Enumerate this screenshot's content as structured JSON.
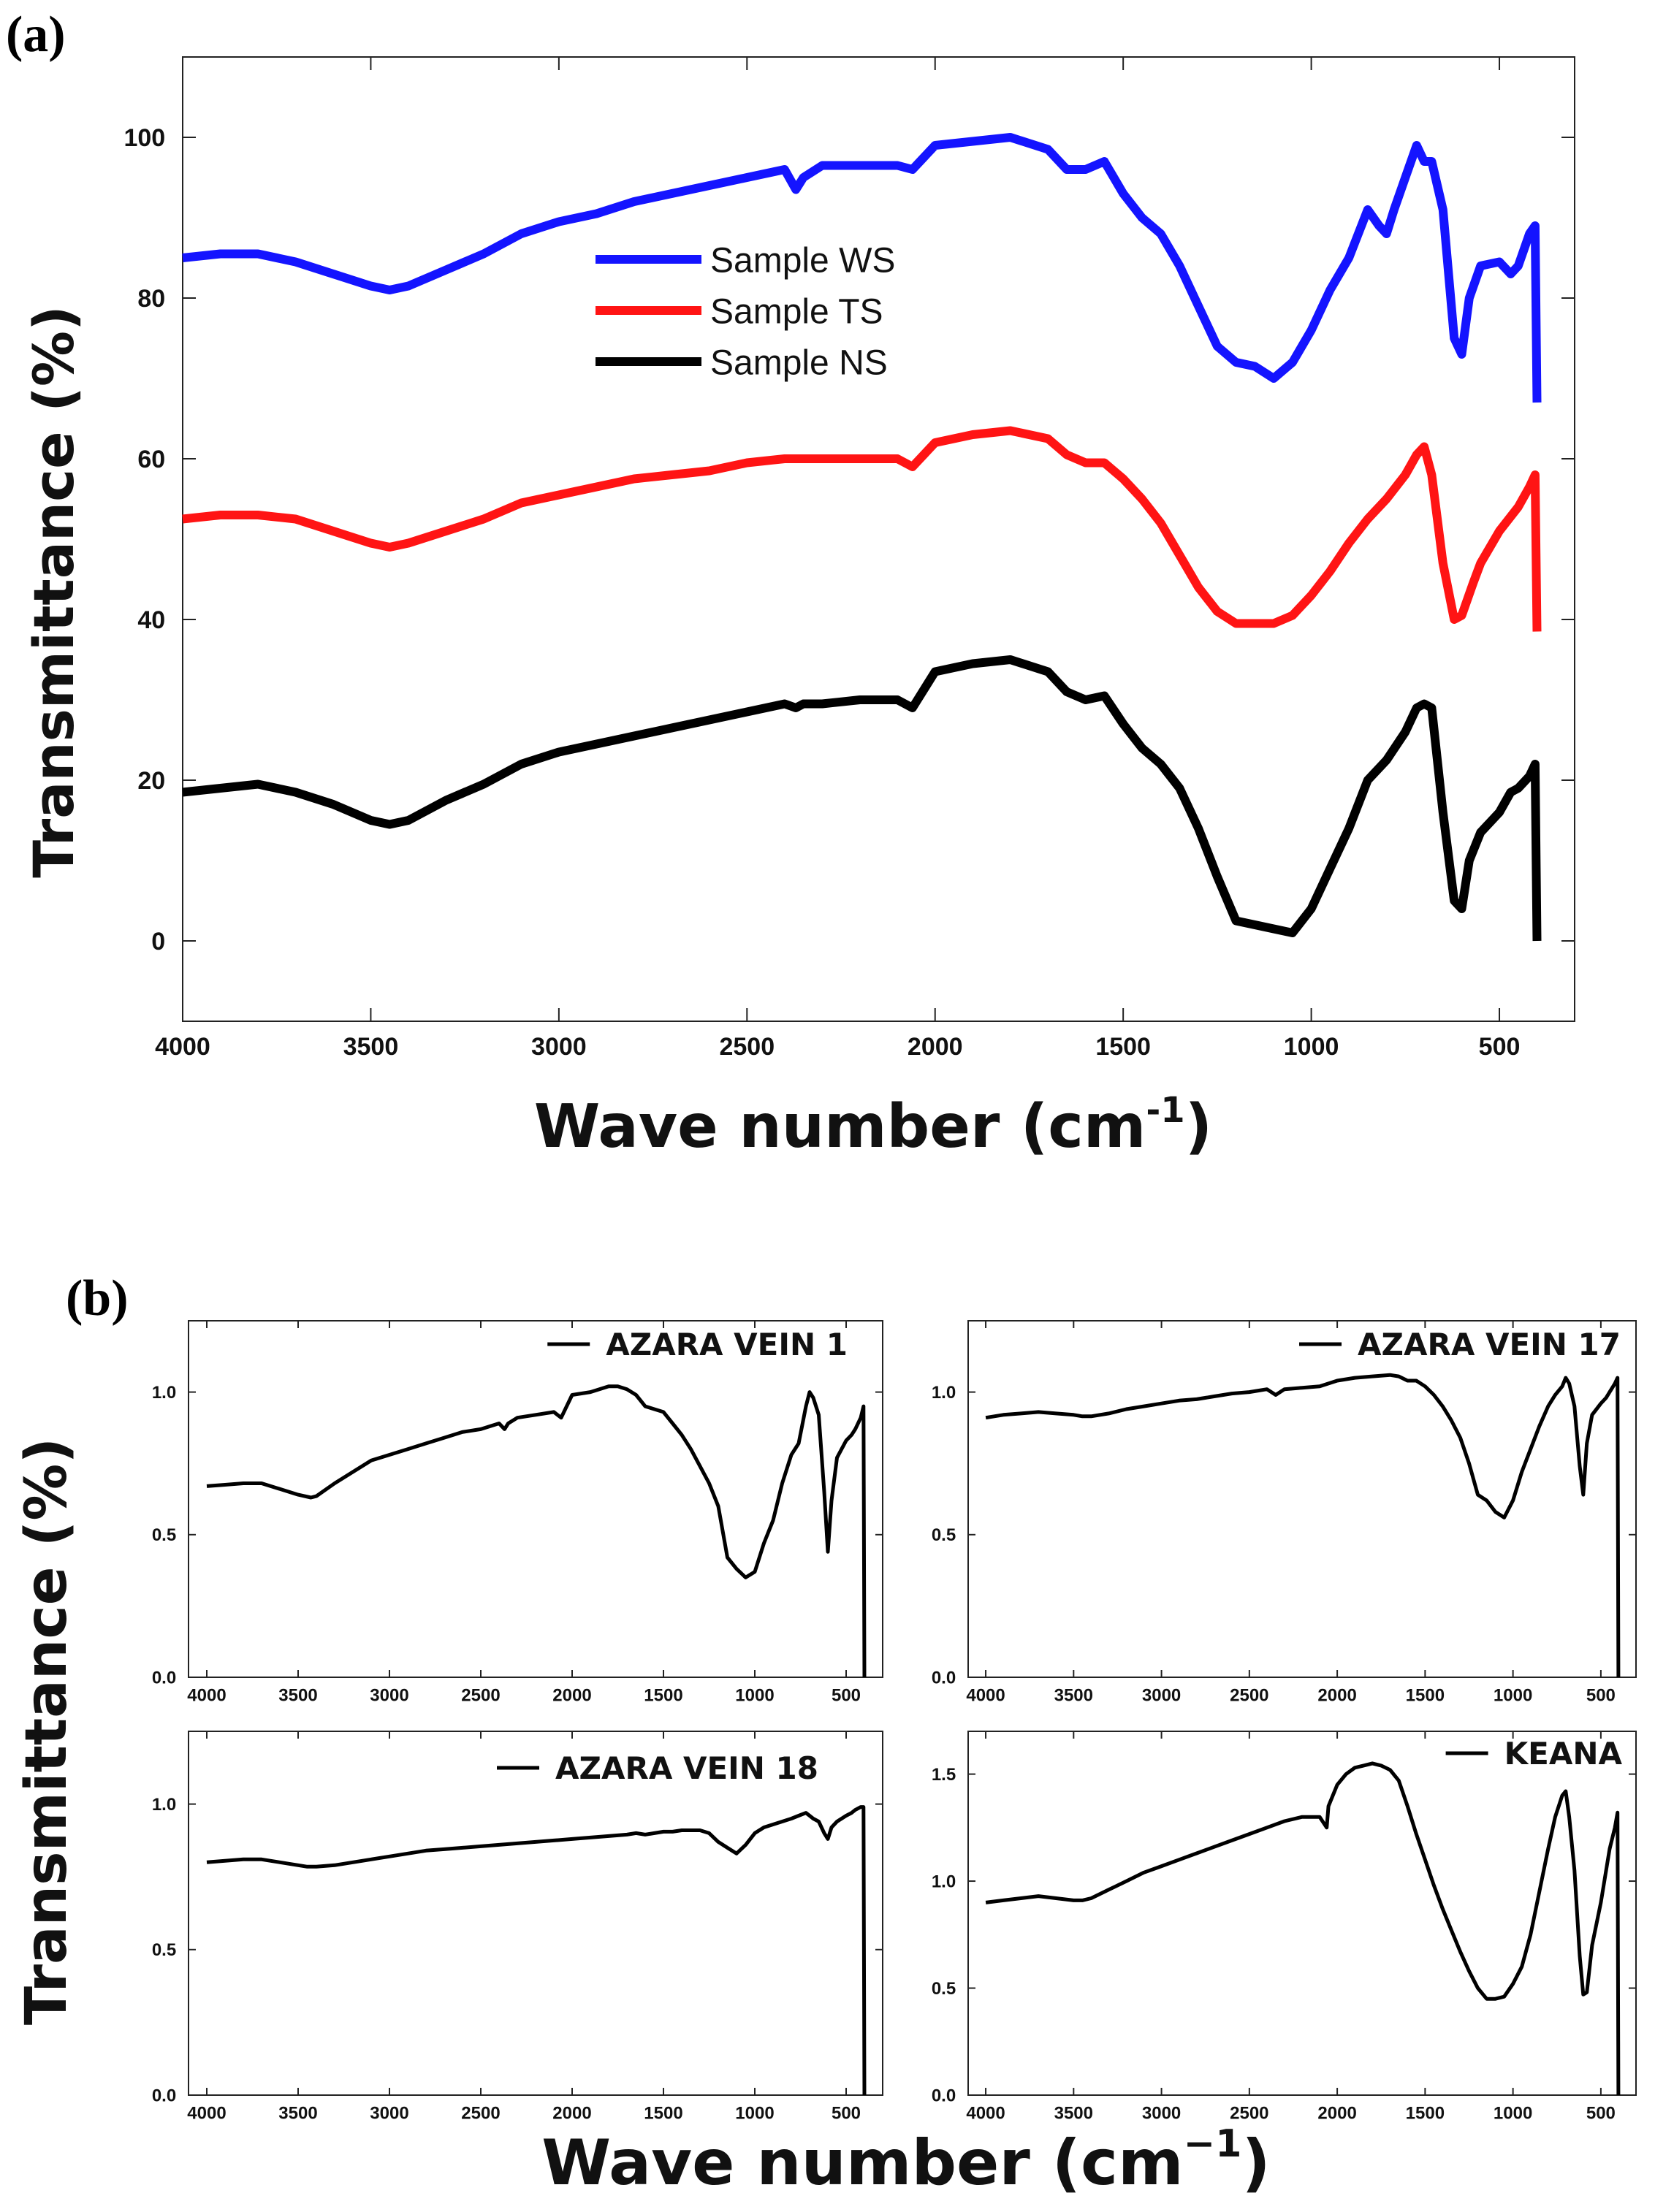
{
  "panel_a": {
    "tag": "(a)",
    "xlabel": "Wave number (cm",
    "xlabel_sup": "-1",
    "ylabel": "Transmittance (%)"
  },
  "panel_b": {
    "tag": "(b)",
    "xlabel": "Wave number (cm",
    "xlabel_sup": "−1",
    "ylabel": "Transmittance (%)"
  },
  "chart_data": [
    {
      "id": "a",
      "type": "line",
      "title": "",
      "xlabel": "Wave number (cm-1)",
      "ylabel": "Transmittance (%)",
      "xlim": [
        4000,
        300
      ],
      "ylim": [
        -10,
        110
      ],
      "x_reversed": true,
      "xticks": [
        4000,
        3500,
        3000,
        2500,
        2000,
        1500,
        1000,
        500
      ],
      "yticks": [
        0,
        20,
        40,
        60,
        80,
        100
      ],
      "legend_position": "center",
      "series": [
        {
          "name": "Sample WS",
          "color": "#1414ff",
          "x": [
            4000,
            3900,
            3800,
            3700,
            3600,
            3500,
            3450,
            3400,
            3300,
            3200,
            3100,
            3000,
            2900,
            2800,
            2700,
            2600,
            2500,
            2400,
            2370,
            2350,
            2300,
            2200,
            2100,
            2060,
            2000,
            1900,
            1800,
            1700,
            1650,
            1600,
            1550,
            1500,
            1450,
            1400,
            1350,
            1300,
            1250,
            1200,
            1150,
            1100,
            1050,
            1000,
            950,
            900,
            850,
            820,
            800,
            780,
            750,
            720,
            700,
            680,
            650,
            620,
            600,
            580,
            550,
            500,
            470,
            450,
            420,
            405,
            400
          ],
          "y": [
            85,
            85.5,
            85.5,
            84.5,
            83,
            81.5,
            81,
            81.5,
            83.5,
            85.5,
            88,
            89.5,
            90.5,
            92,
            93,
            94,
            95,
            96,
            93.5,
            95,
            96.5,
            96.5,
            96.5,
            96,
            99,
            99.5,
            100,
            98.5,
            96,
            96,
            97,
            93,
            90,
            88,
            84,
            79,
            74,
            72,
            71.5,
            70,
            72,
            76,
            81,
            85,
            91,
            89,
            88,
            91,
            95,
            99,
            97,
            97,
            91,
            75,
            73,
            80,
            84,
            84.5,
            83,
            84,
            88,
            89,
            67
          ]
        },
        {
          "name": "Sample TS",
          "color": "#ff1414",
          "x": [
            4000,
            3900,
            3800,
            3700,
            3600,
            3500,
            3450,
            3400,
            3300,
            3200,
            3100,
            3000,
            2900,
            2800,
            2700,
            2600,
            2500,
            2400,
            2300,
            2200,
            2100,
            2060,
            2000,
            1900,
            1800,
            1700,
            1650,
            1600,
            1550,
            1500,
            1450,
            1400,
            1350,
            1300,
            1250,
            1200,
            1150,
            1100,
            1050,
            1000,
            950,
            900,
            850,
            800,
            750,
            720,
            700,
            680,
            650,
            620,
            600,
            570,
            550,
            500,
            450,
            420,
            405,
            400
          ],
          "y": [
            52.5,
            53,
            53,
            52.5,
            51,
            49.5,
            49,
            49.5,
            51,
            52.5,
            54.5,
            55.5,
            56.5,
            57.5,
            58,
            58.5,
            59.5,
            60,
            60,
            60,
            60,
            59,
            62,
            63,
            63.5,
            62.5,
            60.5,
            59.5,
            59.5,
            57.5,
            55,
            52,
            48,
            44,
            41,
            39.5,
            39.5,
            39.5,
            40.5,
            43,
            46,
            49.5,
            52.5,
            55,
            58,
            60.5,
            61.5,
            58,
            47,
            40,
            40.5,
            44.5,
            47,
            51,
            54,
            56.5,
            58,
            38.5
          ]
        },
        {
          "name": "Sample NS",
          "color": "#000000",
          "x": [
            4000,
            3900,
            3800,
            3700,
            3600,
            3500,
            3450,
            3400,
            3300,
            3200,
            3100,
            3000,
            2900,
            2800,
            2700,
            2600,
            2500,
            2400,
            2370,
            2350,
            2300,
            2200,
            2100,
            2060,
            2000,
            1900,
            1800,
            1700,
            1650,
            1600,
            1550,
            1500,
            1450,
            1400,
            1350,
            1300,
            1250,
            1200,
            1150,
            1100,
            1050,
            1000,
            950,
            900,
            850,
            800,
            750,
            720,
            700,
            680,
            650,
            620,
            600,
            580,
            550,
            500,
            470,
            450,
            420,
            405,
            400
          ],
          "y": [
            18.5,
            19,
            19.5,
            18.5,
            17,
            15,
            14.5,
            15,
            17.5,
            19.5,
            22,
            23.5,
            24.5,
            25.5,
            26.5,
            27.5,
            28.5,
            29.5,
            29,
            29.5,
            29.5,
            30,
            30,
            29,
            33.5,
            34.5,
            35,
            33.5,
            31,
            30,
            30.5,
            27,
            24,
            22,
            19,
            14,
            8,
            2.5,
            2,
            1.5,
            1,
            4,
            9,
            14,
            20,
            22.5,
            26,
            29,
            29.5,
            29,
            16,
            5,
            4,
            10,
            13.5,
            16,
            18.5,
            19,
            20.5,
            22,
            0
          ]
        }
      ]
    },
    {
      "id": "b1",
      "type": "line",
      "title": "",
      "xlim": [
        4100,
        300
      ],
      "ylim": [
        0,
        1.25
      ],
      "x_reversed": true,
      "xticks": [
        4000,
        3500,
        3000,
        2500,
        2000,
        1500,
        1000,
        500
      ],
      "yticks": [
        0.0,
        0.5,
        1.0
      ],
      "legend_position": "top-right",
      "series": [
        {
          "name": "AZARA VEIN 1",
          "color": "#000000",
          "x": [
            4000,
            3900,
            3800,
            3700,
            3600,
            3500,
            3430,
            3400,
            3300,
            3200,
            3100,
            3000,
            2900,
            2800,
            2700,
            2600,
            2500,
            2400,
            2370,
            2350,
            2300,
            2200,
            2100,
            2060,
            2000,
            1900,
            1800,
            1750,
            1700,
            1650,
            1600,
            1550,
            1500,
            1450,
            1400,
            1350,
            1300,
            1250,
            1200,
            1150,
            1100,
            1050,
            1000,
            950,
            900,
            850,
            800,
            760,
            720,
            700,
            680,
            650,
            620,
            600,
            580,
            550,
            500,
            470,
            450,
            420,
            405,
            400
          ],
          "y": [
            0.67,
            0.675,
            0.68,
            0.68,
            0.66,
            0.64,
            0.63,
            0.635,
            0.68,
            0.72,
            0.76,
            0.78,
            0.8,
            0.82,
            0.84,
            0.86,
            0.87,
            0.89,
            0.87,
            0.89,
            0.91,
            0.92,
            0.93,
            0.91,
            0.99,
            1.0,
            1.02,
            1.02,
            1.01,
            0.99,
            0.95,
            0.94,
            0.93,
            0.89,
            0.85,
            0.8,
            0.74,
            0.68,
            0.6,
            0.42,
            0.38,
            0.35,
            0.37,
            0.47,
            0.55,
            0.68,
            0.78,
            0.82,
            0.95,
            1.0,
            0.98,
            0.92,
            0.65,
            0.44,
            0.62,
            0.77,
            0.83,
            0.85,
            0.87,
            0.91,
            0.95,
            0.0
          ]
        }
      ]
    },
    {
      "id": "b2",
      "type": "line",
      "title": "",
      "xlim": [
        4100,
        300
      ],
      "ylim": [
        0,
        1.25
      ],
      "x_reversed": true,
      "xticks": [
        4000,
        3500,
        3000,
        2500,
        2000,
        1500,
        1000,
        500
      ],
      "yticks": [
        0.0,
        0.5,
        1.0
      ],
      "legend_position": "top-right",
      "series": [
        {
          "name": "AZARA VEIN 17",
          "color": "#000000",
          "x": [
            4000,
            3900,
            3800,
            3700,
            3600,
            3500,
            3450,
            3400,
            3300,
            3200,
            3100,
            3000,
            2900,
            2800,
            2700,
            2600,
            2500,
            2400,
            2350,
            2300,
            2200,
            2100,
            2000,
            1900,
            1800,
            1700,
            1650,
            1600,
            1550,
            1500,
            1450,
            1400,
            1350,
            1300,
            1250,
            1200,
            1150,
            1100,
            1050,
            1000,
            950,
            900,
            850,
            800,
            760,
            720,
            700,
            680,
            650,
            620,
            600,
            580,
            550,
            500,
            470,
            450,
            420,
            405,
            400
          ],
          "y": [
            0.91,
            0.92,
            0.925,
            0.93,
            0.925,
            0.92,
            0.915,
            0.915,
            0.925,
            0.94,
            0.95,
            0.96,
            0.97,
            0.975,
            0.985,
            0.995,
            1.0,
            1.01,
            0.99,
            1.01,
            1.015,
            1.02,
            1.04,
            1.05,
            1.055,
            1.06,
            1.055,
            1.04,
            1.04,
            1.02,
            0.99,
            0.95,
            0.9,
            0.84,
            0.75,
            0.64,
            0.62,
            0.58,
            0.56,
            0.62,
            0.72,
            0.8,
            0.88,
            0.95,
            0.99,
            1.02,
            1.05,
            1.03,
            0.95,
            0.74,
            0.64,
            0.82,
            0.92,
            0.96,
            0.98,
            1.0,
            1.03,
            1.05,
            0.0
          ]
        }
      ]
    },
    {
      "id": "b3",
      "type": "line",
      "title": "",
      "xlim": [
        4100,
        300
      ],
      "ylim": [
        0,
        1.25
      ],
      "x_reversed": true,
      "xticks": [
        4000,
        3500,
        3000,
        2500,
        2000,
        1500,
        1000,
        500
      ],
      "yticks": [
        0.0,
        0.5,
        1.0
      ],
      "legend_position": "top-right",
      "series": [
        {
          "name": "AZARA VEIN 18",
          "color": "#000000",
          "x": [
            4000,
            3900,
            3800,
            3700,
            3600,
            3500,
            3450,
            3400,
            3300,
            3200,
            3100,
            3000,
            2900,
            2800,
            2700,
            2600,
            2500,
            2400,
            2300,
            2200,
            2100,
            2000,
            1900,
            1800,
            1700,
            1650,
            1600,
            1550,
            1500,
            1450,
            1400,
            1350,
            1300,
            1250,
            1200,
            1150,
            1100,
            1050,
            1000,
            950,
            900,
            850,
            800,
            760,
            720,
            700,
            680,
            650,
            620,
            600,
            580,
            550,
            500,
            470,
            450,
            420,
            405,
            400
          ],
          "y": [
            0.8,
            0.805,
            0.81,
            0.81,
            0.8,
            0.79,
            0.785,
            0.785,
            0.79,
            0.8,
            0.81,
            0.82,
            0.83,
            0.84,
            0.845,
            0.85,
            0.855,
            0.86,
            0.865,
            0.87,
            0.875,
            0.88,
            0.885,
            0.89,
            0.895,
            0.9,
            0.895,
            0.9,
            0.905,
            0.905,
            0.91,
            0.91,
            0.91,
            0.9,
            0.87,
            0.85,
            0.83,
            0.86,
            0.9,
            0.92,
            0.93,
            0.94,
            0.95,
            0.96,
            0.97,
            0.96,
            0.95,
            0.94,
            0.9,
            0.88,
            0.92,
            0.94,
            0.96,
            0.97,
            0.98,
            0.99,
            0.99,
            0.0
          ]
        }
      ]
    },
    {
      "id": "b4",
      "type": "line",
      "title": "",
      "xlim": [
        4100,
        300
      ],
      "ylim": [
        0,
        1.7
      ],
      "x_reversed": true,
      "xticks": [
        4000,
        3500,
        3000,
        2500,
        2000,
        1500,
        1000,
        500
      ],
      "yticks": [
        0.0,
        0.5,
        1.0,
        1.5
      ],
      "legend_position": "top-right",
      "series": [
        {
          "name": "KEANA",
          "color": "#000000",
          "x": [
            4000,
            3900,
            3800,
            3700,
            3600,
            3500,
            3450,
            3400,
            3300,
            3200,
            3100,
            3000,
            2900,
            2800,
            2700,
            2600,
            2500,
            2400,
            2300,
            2200,
            2100,
            2060,
            2050,
            2000,
            1950,
            1900,
            1850,
            1800,
            1750,
            1700,
            1650,
            1600,
            1550,
            1500,
            1450,
            1400,
            1350,
            1300,
            1250,
            1200,
            1150,
            1100,
            1050,
            1000,
            950,
            900,
            850,
            800,
            760,
            720,
            700,
            680,
            650,
            620,
            600,
            580,
            550,
            500,
            470,
            450,
            420,
            405,
            400
          ],
          "y": [
            0.9,
            0.91,
            0.92,
            0.93,
            0.92,
            0.91,
            0.91,
            0.92,
            0.96,
            1.0,
            1.04,
            1.07,
            1.1,
            1.13,
            1.16,
            1.19,
            1.22,
            1.25,
            1.28,
            1.3,
            1.3,
            1.25,
            1.35,
            1.45,
            1.5,
            1.53,
            1.54,
            1.55,
            1.54,
            1.52,
            1.47,
            1.35,
            1.22,
            1.1,
            0.98,
            0.87,
            0.77,
            0.67,
            0.58,
            0.5,
            0.45,
            0.45,
            0.46,
            0.52,
            0.6,
            0.75,
            0.95,
            1.15,
            1.3,
            1.4,
            1.42,
            1.3,
            1.05,
            0.65,
            0.47,
            0.48,
            0.7,
            0.9,
            1.05,
            1.15,
            1.25,
            1.32,
            0.0
          ]
        }
      ]
    }
  ]
}
